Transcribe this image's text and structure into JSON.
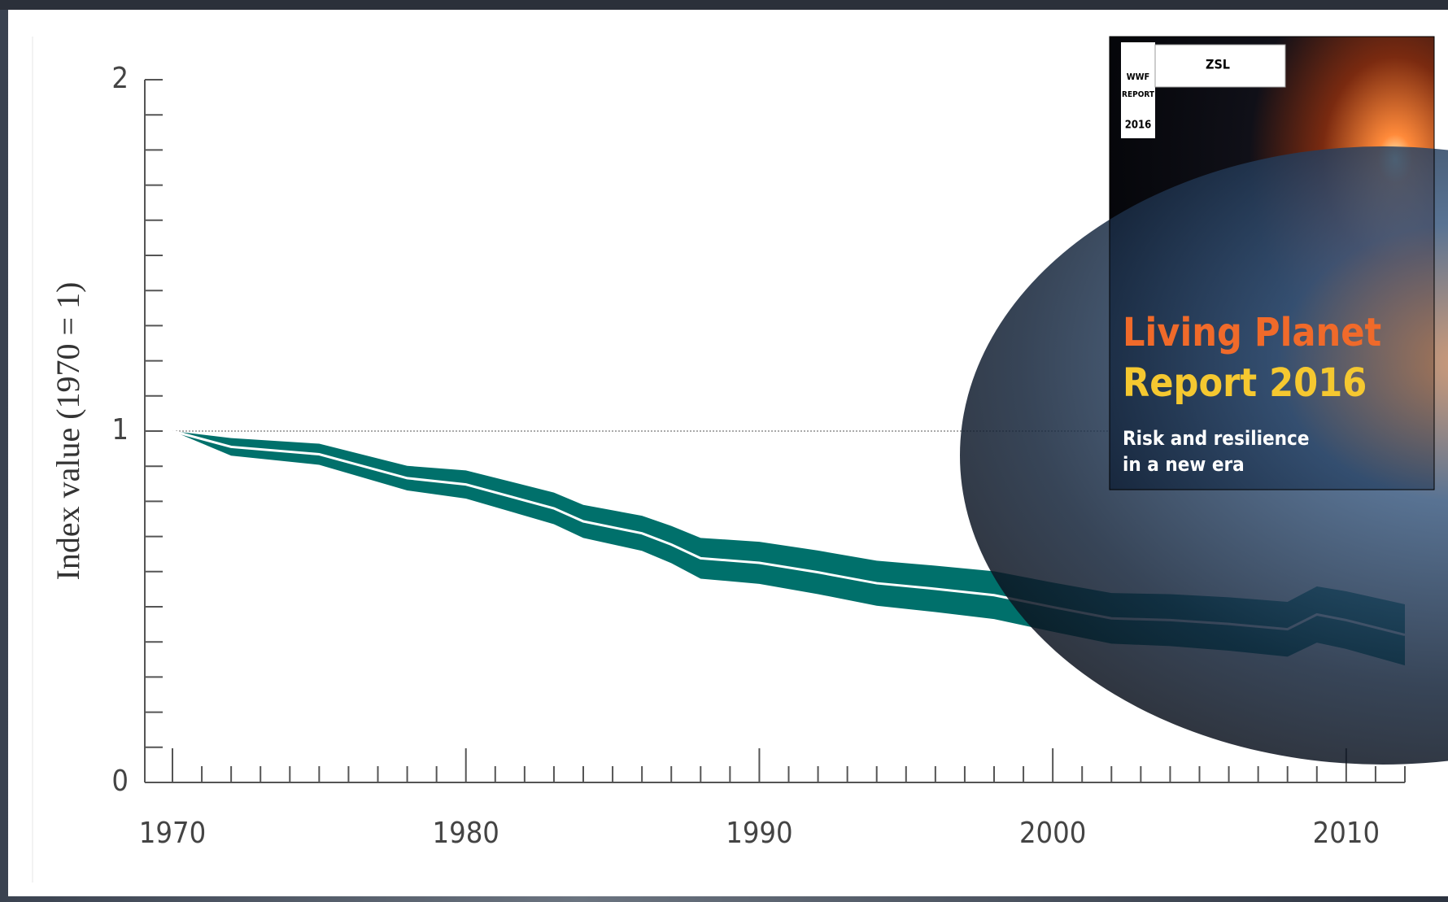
{
  "chart_data": {
    "type": "band",
    "ylabel": "Index value (1970 = 1)",
    "x": [
      1970,
      1972,
      1975,
      1978,
      1980,
      1983,
      1984,
      1986,
      1987,
      1988,
      1990,
      1992,
      1994,
      1996,
      1998,
      2000,
      2002,
      2004,
      2006,
      2008,
      2009,
      2010,
      2012
    ],
    "values": [
      1,
      0.955,
      0.934,
      0.866,
      0.848,
      0.78,
      0.743,
      0.709,
      0.677,
      0.638,
      0.625,
      0.598,
      0.567,
      0.551,
      0.533,
      0.499,
      0.467,
      0.462,
      0.451,
      0.436,
      0.478,
      0.462,
      0.42
    ],
    "upper": [
      1,
      0.98,
      0.964,
      0.901,
      0.888,
      0.825,
      0.79,
      0.759,
      0.73,
      0.696,
      0.685,
      0.66,
      0.631,
      0.617,
      0.601,
      0.569,
      0.539,
      0.536,
      0.527,
      0.514,
      0.558,
      0.544,
      0.507
    ],
    "lower": [
      1,
      0.93,
      0.904,
      0.831,
      0.808,
      0.735,
      0.696,
      0.659,
      0.624,
      0.58,
      0.565,
      0.536,
      0.503,
      0.485,
      0.465,
      0.429,
      0.395,
      0.388,
      0.375,
      0.358,
      0.398,
      0.38,
      0.333
    ],
    "color": "#00706b",
    "line_color": "#ffffff",
    "xlim": [
      1970,
      2012
    ],
    "ylim": [
      0,
      2
    ],
    "xticks": [
      1970,
      1980,
      1990,
      2000,
      2010
    ],
    "yticks": [
      0,
      1,
      2
    ],
    "xminor": [
      1971,
      1972,
      1973,
      1974,
      1975,
      1976,
      1977,
      1978,
      1979,
      1981,
      1982,
      1983,
      1984,
      1985,
      1986,
      1987,
      1988,
      1989,
      1991,
      1992,
      1993,
      1994,
      1995,
      1996,
      1997,
      1998,
      1999,
      2001,
      2002,
      2003,
      2004,
      2005,
      2006,
      2007,
      2008,
      2009,
      2011,
      2012
    ],
    "yminor": [
      0.1,
      0.2,
      0.3,
      0.4,
      0.5,
      0.6,
      0.7,
      0.8,
      0.9,
      1.1,
      1.2,
      1.3,
      1.4,
      1.5,
      1.6,
      1.7,
      1.8,
      1.9
    ],
    "reference_line": 1
  },
  "inset": {
    "logo": "WWF",
    "badge": "REPORT",
    "year": "2016",
    "partner": "ZSL",
    "title_line1": "Living Planet",
    "title_line2": "Report 2016",
    "subtitle_line1": "Risk and resilience",
    "subtitle_line2": "in a new era"
  }
}
